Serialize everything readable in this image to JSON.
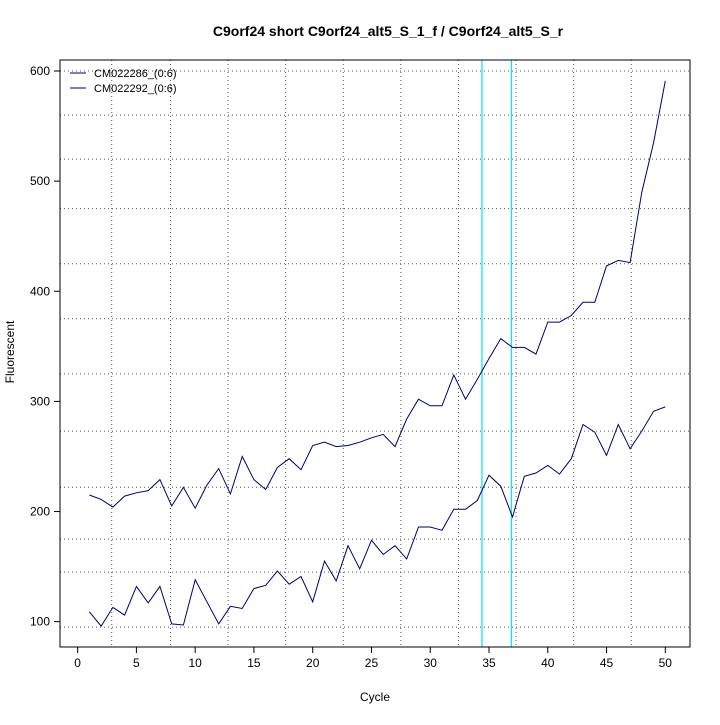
{
  "chart_data": {
    "type": "line",
    "title": "C9orf24 short C9orf24_alt5_S_1_f / C9orf24_alt5_S_r",
    "xlabel": "Cycle",
    "ylabel": "Fluorescent",
    "xlim": [
      -1.5,
      52.1
    ],
    "ylim": [
      77,
      610
    ],
    "x_ticks": [
      0,
      5,
      10,
      15,
      20,
      25,
      30,
      35,
      40,
      45,
      50
    ],
    "y_ticks": [
      100,
      200,
      300,
      400,
      500,
      600
    ],
    "x_grid": [
      2.9,
      7.9,
      12.8,
      17.7,
      22.6,
      27.5,
      32.4,
      37.3,
      42.2,
      47.1
    ],
    "y_grid": [
      95,
      145,
      175,
      222,
      273,
      325,
      375,
      425,
      475,
      520,
      560,
      600
    ],
    "grid": true,
    "legend_position": "top-left",
    "threshold_lines": [
      34.4,
      36.9
    ],
    "threshold_color": "#00e5ee",
    "series_color": "#00006e",
    "series": [
      {
        "name": "CM022286_(0:6)",
        "x": [
          1,
          2,
          3,
          4,
          5,
          6,
          7,
          8,
          9,
          10,
          11,
          12,
          13,
          14,
          15,
          16,
          17,
          18,
          19,
          20,
          21,
          22,
          23,
          24,
          25,
          26,
          27,
          28,
          29,
          30,
          31,
          32,
          33,
          34,
          35,
          36,
          37,
          38,
          39,
          40,
          41,
          42,
          43,
          44,
          45,
          46,
          47,
          48,
          49,
          50
        ],
        "values": [
          215,
          211,
          204,
          214,
          217,
          219,
          229,
          205,
          222,
          203,
          224,
          239,
          216,
          250,
          229,
          220,
          240,
          248,
          238,
          260,
          263,
          259,
          260,
          263,
          267,
          270,
          259,
          284,
          302,
          296,
          296,
          324,
          302,
          320,
          339,
          357,
          349,
          349,
          343,
          372,
          372,
          378,
          390,
          390,
          423,
          428,
          426,
          490,
          535,
          591
        ]
      },
      {
        "name": "CM022292_(0:6)",
        "x": [
          1,
          2,
          3,
          4,
          5,
          6,
          7,
          8,
          9,
          10,
          11,
          12,
          13,
          14,
          15,
          16,
          17,
          18,
          19,
          20,
          21,
          22,
          23,
          24,
          25,
          26,
          27,
          28,
          29,
          30,
          31,
          32,
          33,
          34,
          35,
          36,
          37,
          38,
          39,
          40,
          41,
          42,
          43,
          44,
          45,
          46,
          47,
          48,
          49,
          50
        ],
        "values": [
          109,
          96,
          113,
          106,
          132,
          117,
          132,
          98,
          97,
          138,
          118,
          98,
          114,
          112,
          130,
          133,
          146,
          134,
          141,
          118,
          155,
          137,
          169,
          148,
          174,
          161,
          169,
          157,
          186,
          186,
          183,
          202,
          202,
          210,
          233,
          223,
          195,
          232,
          235,
          242,
          234,
          248,
          279,
          272,
          251,
          279,
          257,
          273,
          291,
          295
        ]
      }
    ]
  }
}
